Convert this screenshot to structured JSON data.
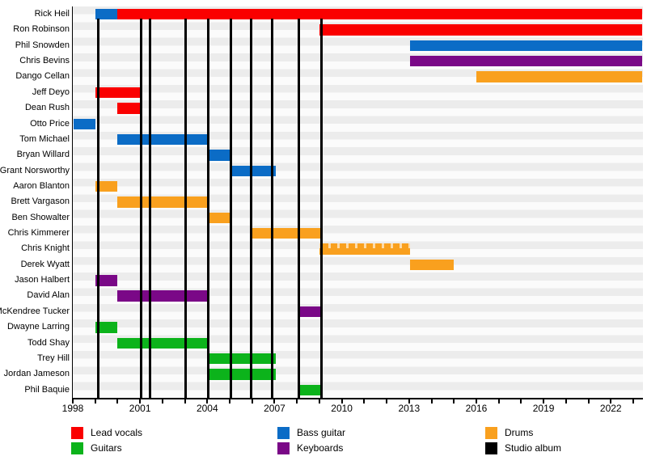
{
  "chart_data": {
    "type": "bar",
    "subtype": "band-members-gantt-timeline",
    "title": "",
    "xlabel": "",
    "ylabel": "",
    "grid": "horizontal-row-stripes",
    "legend_position": "bottom",
    "x_axis": {
      "min": 1998,
      "max": 2023.4,
      "major_tick_years": [
        1998,
        2001,
        2004,
        2007,
        2010,
        2013,
        2016,
        2019,
        2022
      ],
      "minor_tick_step": 1
    },
    "roles": {
      "lead_vocals": {
        "label": "Lead vocals",
        "color": "#FA0000"
      },
      "guitars": {
        "label": "Guitars",
        "color": "#0CB31B"
      },
      "bass": {
        "label": "Bass guitar",
        "color": "#0B6CC6"
      },
      "keyboards": {
        "label": "Keyboards",
        "color": "#7A0887"
      },
      "drums": {
        "label": "Drums",
        "color": "#F9A01E"
      },
      "studio_album": {
        "label": "Studio album",
        "color": "#000000"
      }
    },
    "legend_columns": [
      [
        "lead_vocals",
        "guitars"
      ],
      [
        "bass",
        "keyboards"
      ],
      [
        "drums",
        "studio_album"
      ]
    ],
    "members": [
      {
        "name": "Rick Heil",
        "segments": [
          {
            "role": "bass",
            "start": 1999,
            "end": 2000
          },
          {
            "role": "lead_vocals",
            "start": 2000,
            "end": 2023.4
          }
        ]
      },
      {
        "name": "Ron Robinson",
        "segments": [
          {
            "role": "lead_vocals",
            "start": 2009,
            "end": 2023.4
          }
        ]
      },
      {
        "name": "Phil Snowden",
        "segments": [
          {
            "role": "bass",
            "start": 2013.05,
            "end": 2023.4
          }
        ]
      },
      {
        "name": "Chris Bevins",
        "segments": [
          {
            "role": "keyboards",
            "start": 2013.05,
            "end": 2023.4
          }
        ]
      },
      {
        "name": "Dango Cellan",
        "segments": [
          {
            "role": "drums",
            "start": 2016,
            "end": 2023.4
          }
        ]
      },
      {
        "name": "Jeff Deyo",
        "segments": [
          {
            "role": "lead_vocals",
            "start": 1999,
            "end": 2001.05
          }
        ]
      },
      {
        "name": "Dean Rush",
        "segments": [
          {
            "role": "lead_vocals",
            "start": 2000,
            "end": 2001.05
          }
        ]
      },
      {
        "name": "Otto Price",
        "segments": [
          {
            "role": "bass",
            "start": 1998.05,
            "end": 1999
          }
        ]
      },
      {
        "name": "Tom Michael",
        "segments": [
          {
            "role": "bass",
            "start": 2000,
            "end": 2004.05
          }
        ]
      },
      {
        "name": "Bryan Willard",
        "segments": [
          {
            "role": "bass",
            "start": 2004.05,
            "end": 2005.05
          }
        ]
      },
      {
        "name": "Grant Norsworthy",
        "segments": [
          {
            "role": "bass",
            "start": 2005.05,
            "end": 2007.05
          }
        ]
      },
      {
        "name": "Aaron Blanton",
        "segments": [
          {
            "role": "drums",
            "start": 1999,
            "end": 2000
          }
        ]
      },
      {
        "name": "Brett Vargason",
        "segments": [
          {
            "role": "drums",
            "start": 2000,
            "end": 2004.05
          }
        ]
      },
      {
        "name": "Ben Showalter",
        "segments": [
          {
            "role": "drums",
            "start": 2004.05,
            "end": 2005.05
          }
        ]
      },
      {
        "name": "Chris Kimmerer",
        "segments": [
          {
            "role": "drums",
            "start": 2006,
            "end": 2009.1
          }
        ]
      },
      {
        "name": "Chris Knight",
        "segments": [
          {
            "role": "drums",
            "start": 2009,
            "end": 2013.05,
            "pattern": "dashed"
          }
        ]
      },
      {
        "name": "Derek Wyatt",
        "segments": [
          {
            "role": "drums",
            "start": 2013.05,
            "end": 2015
          }
        ]
      },
      {
        "name": "Jason Halbert",
        "segments": [
          {
            "role": "keyboards",
            "start": 1999,
            "end": 2000
          }
        ]
      },
      {
        "name": "David Alan",
        "segments": [
          {
            "role": "keyboards",
            "start": 2000,
            "end": 2004.05
          }
        ]
      },
      {
        "name": "McKendree Tucker",
        "segments": [
          {
            "role": "keyboards",
            "start": 2008.1,
            "end": 2009.1
          }
        ]
      },
      {
        "name": "Dwayne Larring",
        "segments": [
          {
            "role": "guitars",
            "start": 1999,
            "end": 2000
          }
        ]
      },
      {
        "name": "Todd Shay",
        "segments": [
          {
            "role": "guitars",
            "start": 2000,
            "end": 2004.05
          }
        ]
      },
      {
        "name": "Trey Hill",
        "segments": [
          {
            "role": "guitars",
            "start": 2004.05,
            "end": 2007.05
          }
        ]
      },
      {
        "name": "Jordan Jameson",
        "segments": [
          {
            "role": "guitars",
            "start": 2004.05,
            "end": 2007.05
          }
        ]
      },
      {
        "name": "Phil Baquie",
        "segments": [
          {
            "role": "guitars",
            "start": 2008.1,
            "end": 2009.1
          }
        ]
      }
    ],
    "album_release_years": [
      1999.15,
      2001.05,
      2001.45,
      2003.05,
      2004.05,
      2005.05,
      2005.95,
      2006.9,
      2008.1,
      2009.1
    ]
  }
}
